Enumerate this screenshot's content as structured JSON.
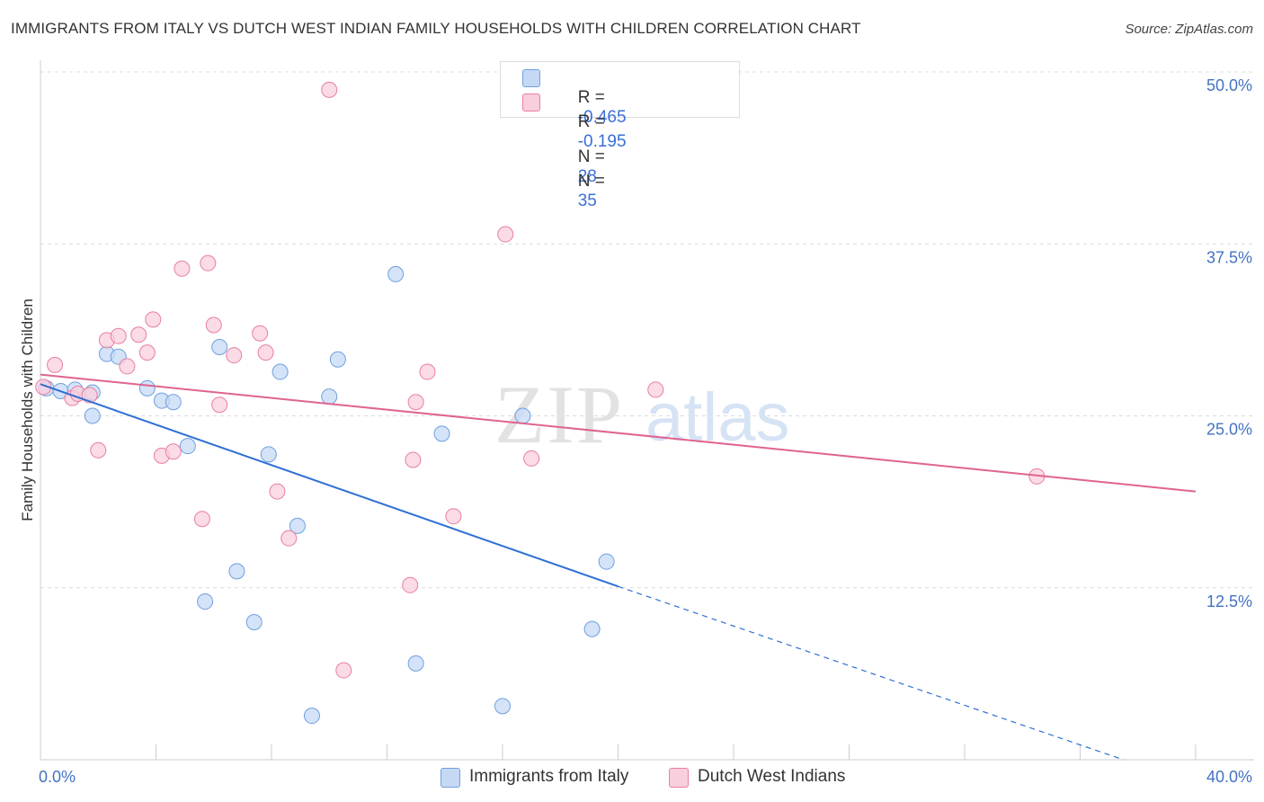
{
  "title": "IMMIGRANTS FROM ITALY VS DUTCH WEST INDIAN FAMILY HOUSEHOLDS WITH CHILDREN CORRELATION CHART",
  "source": "Source: ZipAtlas.com",
  "watermark": {
    "zip": "ZIP",
    "atlas": "atlas"
  },
  "legend": {
    "r_label": "R =",
    "n_label": "N =",
    "series1": {
      "r": "-0.465",
      "n": "28"
    },
    "series2": {
      "r": "-0.195",
      "n": "35"
    }
  },
  "chart_data": {
    "type": "scatter",
    "title": "IMMIGRANTS FROM ITALY VS DUTCH WEST INDIAN FAMILY HOUSEHOLDS WITH CHILDREN CORRELATION CHART",
    "xlabel": "",
    "ylabel": "Family Households with Children",
    "xlim": [
      0,
      40
    ],
    "ylim": [
      0,
      50
    ],
    "x_tick_labels": [
      "0.0%",
      "40.0%"
    ],
    "y_ticks": [
      12.5,
      25.0,
      37.5,
      50.0
    ],
    "y_tick_labels": [
      "12.5%",
      "25.0%",
      "37.5%",
      "50.0%"
    ],
    "series": [
      {
        "name": "Immigrants from Italy",
        "color": "#6fa0e0",
        "fill": "#c5d9f5",
        "r": -0.465,
        "n": 28,
        "points": [
          [
            0.2,
            27.0
          ],
          [
            0.7,
            26.8
          ],
          [
            1.2,
            26.9
          ],
          [
            1.8,
            26.7
          ],
          [
            1.8,
            25.0
          ],
          [
            2.3,
            29.5
          ],
          [
            2.7,
            29.3
          ],
          [
            3.7,
            27.0
          ],
          [
            4.2,
            26.1
          ],
          [
            4.6,
            26.0
          ],
          [
            5.1,
            22.8
          ],
          [
            6.2,
            30.0
          ],
          [
            5.7,
            11.5
          ],
          [
            6.8,
            13.7
          ],
          [
            7.4,
            10.0
          ],
          [
            7.9,
            22.2
          ],
          [
            8.3,
            28.2
          ],
          [
            8.9,
            17.0
          ],
          [
            9.4,
            3.2
          ],
          [
            10.0,
            26.4
          ],
          [
            10.3,
            29.1
          ],
          [
            12.3,
            35.3
          ],
          [
            13.0,
            7.0
          ],
          [
            13.9,
            23.7
          ],
          [
            16.0,
            3.9
          ],
          [
            16.7,
            25.0
          ],
          [
            19.1,
            9.5
          ],
          [
            19.6,
            14.4
          ]
        ],
        "trend": {
          "x_start": 0,
          "y_start": 27.3,
          "x_solid_end": 20.0,
          "y_solid_end": 12.6,
          "x_dash_end": 37.5,
          "y_dash_end": 0.0
        }
      },
      {
        "name": "Dutch West Indians",
        "color": "#e87fa0",
        "fill": "#f9cfdd",
        "r": -0.195,
        "n": 35,
        "points": [
          [
            0.1,
            27.1
          ],
          [
            0.5,
            28.7
          ],
          [
            1.1,
            26.3
          ],
          [
            1.3,
            26.6
          ],
          [
            1.7,
            26.5
          ],
          [
            2.0,
            22.5
          ],
          [
            2.3,
            30.5
          ],
          [
            2.7,
            30.8
          ],
          [
            3.0,
            28.6
          ],
          [
            3.4,
            30.9
          ],
          [
            3.7,
            29.6
          ],
          [
            3.9,
            32.0
          ],
          [
            4.2,
            22.1
          ],
          [
            4.6,
            22.4
          ],
          [
            4.9,
            35.7
          ],
          [
            5.6,
            17.5
          ],
          [
            5.8,
            36.1
          ],
          [
            6.0,
            31.6
          ],
          [
            6.2,
            25.8
          ],
          [
            6.7,
            29.4
          ],
          [
            7.6,
            31.0
          ],
          [
            7.8,
            29.6
          ],
          [
            8.2,
            19.5
          ],
          [
            8.6,
            16.1
          ],
          [
            10.0,
            48.7
          ],
          [
            10.5,
            6.5
          ],
          [
            12.8,
            12.7
          ],
          [
            12.9,
            21.8
          ],
          [
            13.4,
            28.2
          ],
          [
            14.3,
            17.7
          ],
          [
            16.1,
            38.2
          ],
          [
            17.0,
            21.9
          ],
          [
            21.3,
            26.9
          ],
          [
            34.5,
            20.6
          ],
          [
            13.0,
            26.0
          ]
        ],
        "trend": {
          "x_start": 0,
          "y_start": 28.0,
          "x_end": 40,
          "y_end": 19.5
        }
      }
    ]
  },
  "bottom_legend": [
    "Immigrants from Italy",
    "Dutch West Indians"
  ]
}
